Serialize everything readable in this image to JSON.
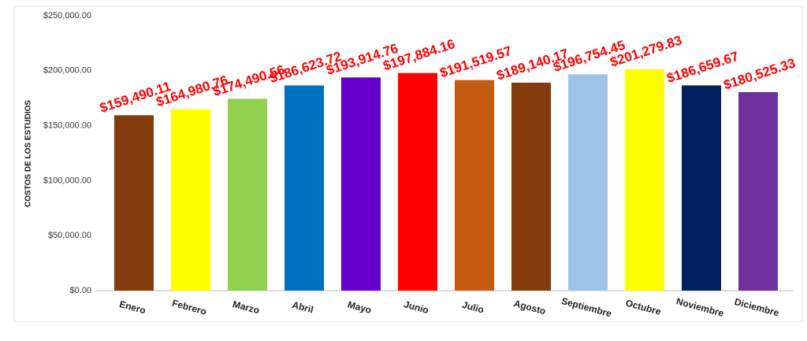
{
  "chart_data": {
    "type": "bar",
    "y_label": "COSTOS DE LOS ESTUDIOS",
    "categories": [
      "Enero",
      "Febrero",
      "Marzo",
      "Abril",
      "Mayo",
      "Junio",
      "Julio",
      "Agosto",
      "Septiembre",
      "Octubre",
      "Noviembre",
      "Diciembre"
    ],
    "values": [
      159490.11,
      164980.76,
      174490.56,
      186623.72,
      193914.76,
      197884.16,
      191519.57,
      189140.17,
      196754.45,
      201279.83,
      186659.67,
      180525.33
    ],
    "value_labels": [
      "$159,490.11",
      "$164,980.76",
      "$174,490.56",
      "$186,623.72",
      "$193,914.76",
      "$197,884.16",
      "$191,519.57",
      "$189,140.17",
      "$196,754.45",
      "$201,279.83",
      "$186,659.67",
      "$180,525.33"
    ],
    "colors": [
      "#843c0c",
      "#ffff00",
      "#92d050",
      "#0070c0",
      "#6600cc",
      "#ff0000",
      "#c55a11",
      "#843c0c",
      "#9dc3e6",
      "#ffff00",
      "#002060",
      "#7030a0"
    ],
    "ylim": [
      0,
      250000
    ],
    "yticks": [
      {
        "value": 0,
        "label": "$0.00"
      },
      {
        "value": 50000,
        "label": "$50,000.00"
      },
      {
        "value": 100000,
        "label": "$100,000.00"
      },
      {
        "value": 150000,
        "label": "$150,000.00"
      },
      {
        "value": 200000,
        "label": "$200,000.00"
      },
      {
        "value": 250000,
        "label": "$250,000.00"
      }
    ],
    "grid": false
  }
}
